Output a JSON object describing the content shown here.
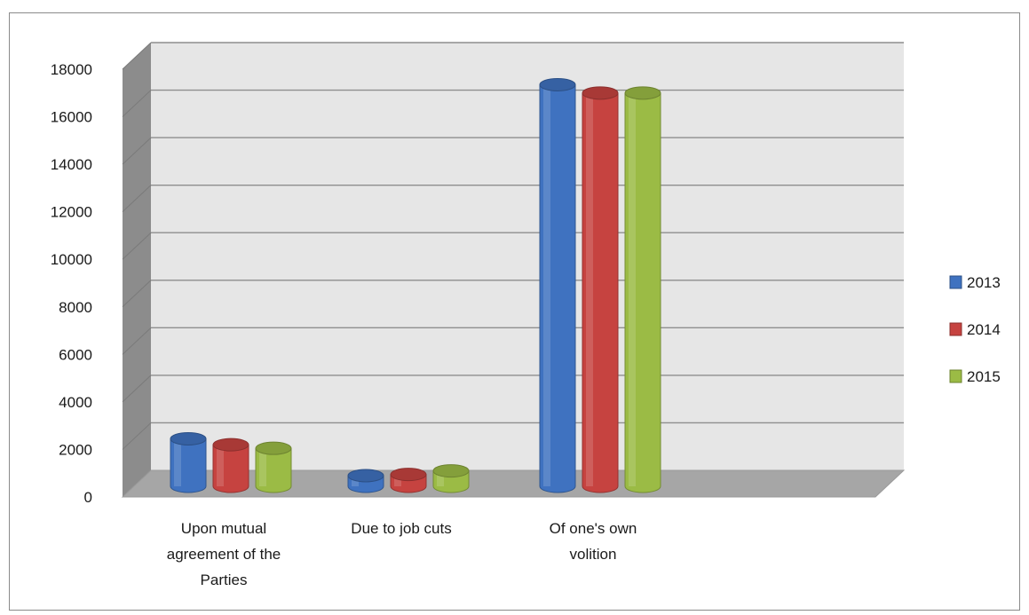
{
  "chart_data": {
    "type": "bar",
    "title": "",
    "xlabel": "",
    "ylabel": "",
    "categories": [
      [
        "Upon mutual",
        "agreement of the",
        "Parties"
      ],
      [
        "Due to job cuts"
      ],
      [
        "Of one's own",
        "volition"
      ]
    ],
    "series": [
      {
        "name": "2013",
        "color": "#3f72c0",
        "values": [
          2000,
          450,
          16900
        ]
      },
      {
        "name": "2014",
        "color": "#c64340",
        "values": [
          1750,
          500,
          16550
        ]
      },
      {
        "name": "2015",
        "color": "#9bbb45",
        "values": [
          1600,
          650,
          16550
        ]
      }
    ],
    "ylim": [
      0,
      18000
    ],
    "yticks": [
      0,
      2000,
      4000,
      6000,
      8000,
      10000,
      12000,
      14000,
      16000,
      18000
    ],
    "grid": true,
    "legend_position": "right",
    "style": "3d-cylinder"
  }
}
